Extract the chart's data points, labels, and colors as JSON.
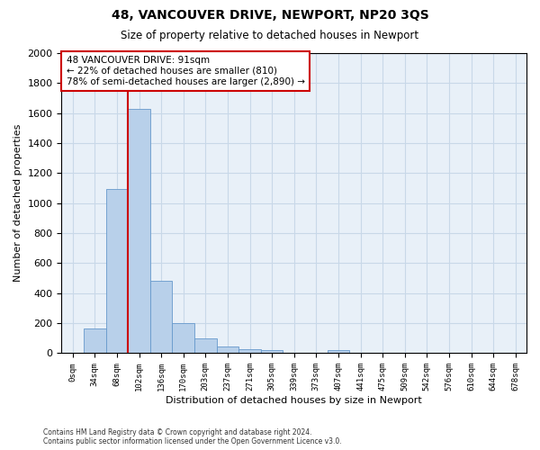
{
  "title": "48, VANCOUVER DRIVE, NEWPORT, NP20 3QS",
  "subtitle": "Size of property relative to detached houses in Newport",
  "xlabel": "Distribution of detached houses by size in Newport",
  "ylabel": "Number of detached properties",
  "bar_labels": [
    "0sqm",
    "34sqm",
    "68sqm",
    "102sqm",
    "136sqm",
    "170sqm",
    "203sqm",
    "237sqm",
    "271sqm",
    "305sqm",
    "339sqm",
    "373sqm",
    "407sqm",
    "441sqm",
    "475sqm",
    "509sqm",
    "542sqm",
    "576sqm",
    "610sqm",
    "644sqm",
    "678sqm"
  ],
  "bar_values": [
    0,
    165,
    1095,
    1630,
    480,
    200,
    100,
    45,
    25,
    20,
    0,
    0,
    20,
    0,
    0,
    0,
    0,
    0,
    0,
    0,
    0
  ],
  "bar_color": "#b8d0ea",
  "bar_edge_color": "#6699cc",
  "vline_color": "#cc0000",
  "ylim": [
    0,
    2000
  ],
  "yticks": [
    0,
    200,
    400,
    600,
    800,
    1000,
    1200,
    1400,
    1600,
    1800,
    2000
  ],
  "annotation_text": "48 VANCOUVER DRIVE: 91sqm\n← 22% of detached houses are smaller (810)\n78% of semi-detached houses are larger (2,890) →",
  "annotation_box_color": "#ffffff",
  "annotation_box_edge": "#cc0000",
  "footer_line1": "Contains HM Land Registry data © Crown copyright and database right 2024.",
  "footer_line2": "Contains public sector information licensed under the Open Government Licence v3.0.",
  "background_color": "#ffffff",
  "grid_color": "#c8d8e8"
}
